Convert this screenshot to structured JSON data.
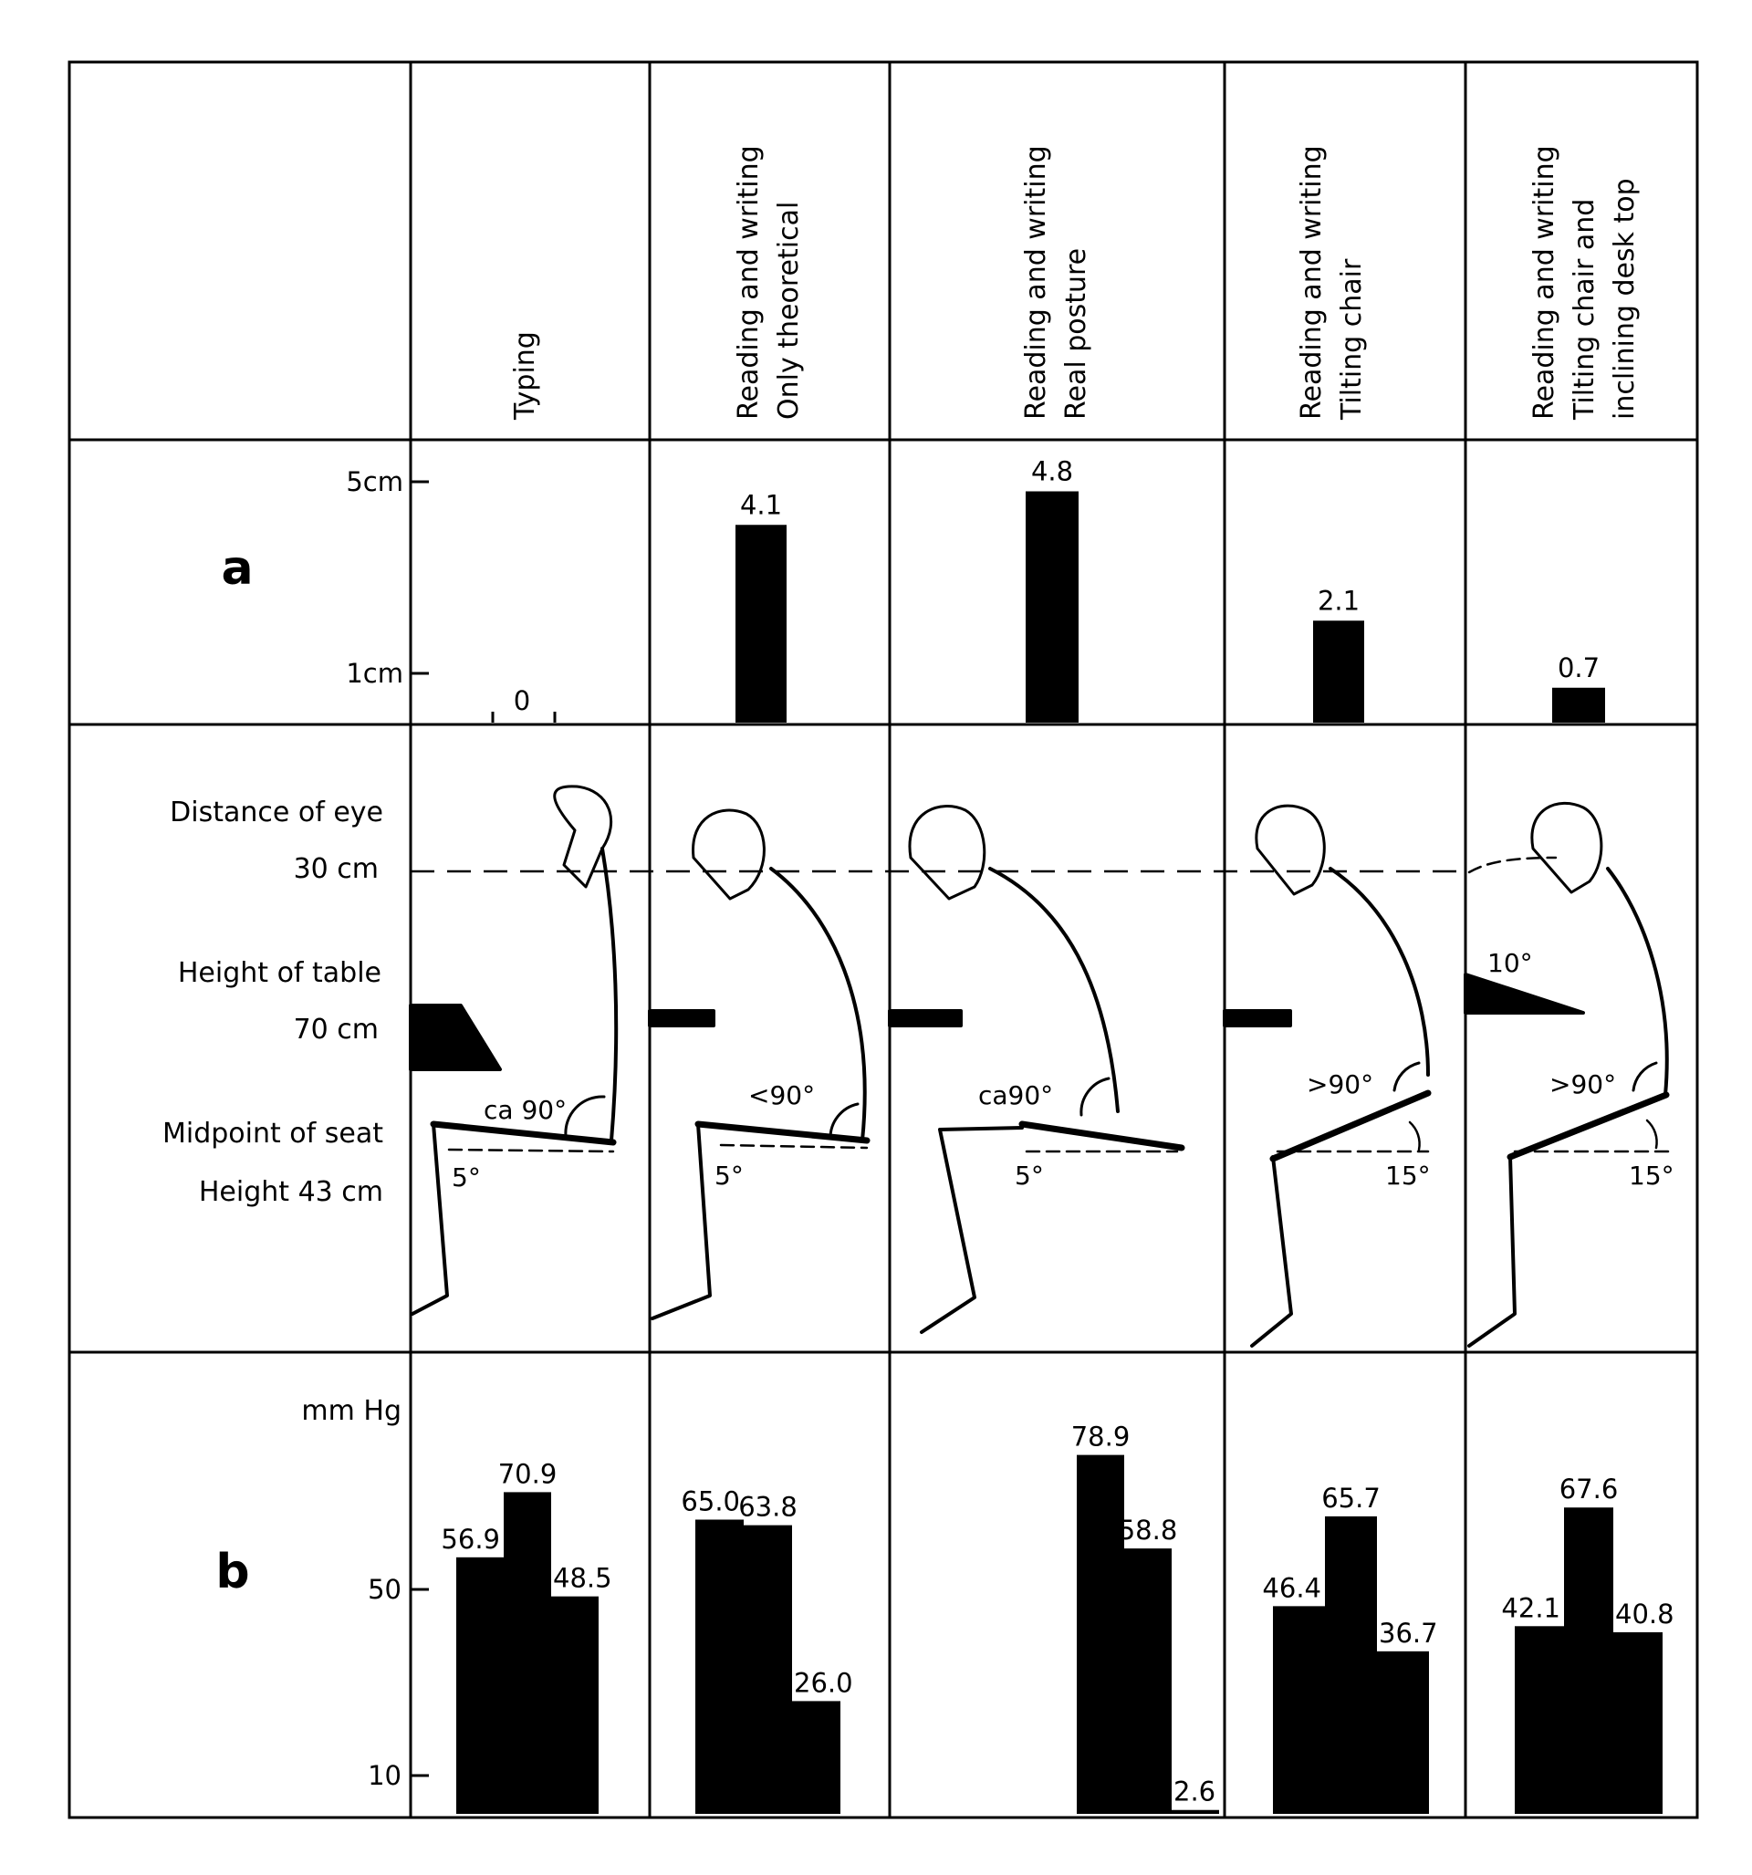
{
  "columns": [
    {
      "lines": [
        "Typing"
      ]
    },
    {
      "lines": [
        "Reading and writing",
        "Only theoretical"
      ]
    },
    {
      "lines": [
        "Reading and writing",
        "Real posture"
      ]
    },
    {
      "lines": [
        "Reading and writing",
        "Tilting chair"
      ]
    },
    {
      "lines": [
        "Reading and writing",
        "Tilting chair and",
        "inclining desk top"
      ]
    }
  ],
  "row_a": {
    "label": "a",
    "ticks": [
      {
        "label": "5cm",
        "value": 5
      },
      {
        "label": "1cm",
        "value": 1
      }
    ]
  },
  "row_posture": {
    "labels": [
      "Distance of eye",
      "30 cm",
      "Height of table",
      "70 cm",
      "Midpoint of seat",
      "Height 43 cm"
    ],
    "angles": [
      {
        "knee": "ca 90°",
        "seat": "5°"
      },
      {
        "knee": "<90°",
        "seat": "5°"
      },
      {
        "knee": "ca90°",
        "seat": "5°"
      },
      {
        "knee": ">90°",
        "seat": "15°"
      },
      {
        "knee": ">90°",
        "seat": "15°",
        "desk": "10°"
      }
    ]
  },
  "row_b": {
    "label": "b",
    "unit": "mm Hg",
    "ticks": [
      {
        "label": "50",
        "value": 50
      },
      {
        "label": "10",
        "value": 10
      }
    ]
  },
  "chart_data": [
    {
      "type": "bar",
      "panel": "a",
      "categories": [
        "Typing",
        "Reading and writing Only theoretical",
        "Reading and writing Real posture",
        "Reading and writing Tilting chair",
        "Reading and writing Tilting chair and inclining desk top"
      ],
      "values": [
        0,
        4.1,
        4.8,
        2.1,
        0.7
      ],
      "value_labels": [
        "0",
        "4.1",
        "4.8",
        "2.1",
        "0.7"
      ],
      "ylabel": "",
      "yticks": [
        "5cm",
        "1cm"
      ]
    },
    {
      "type": "bar",
      "panel": "b",
      "ylabel": "mm Hg",
      "yticks": [
        "50",
        "10"
      ],
      "groups": [
        {
          "category": "Typing",
          "values": [
            56.9,
            70.9,
            48.5
          ],
          "labels": [
            "56.9",
            "70.9",
            "48.5"
          ]
        },
        {
          "category": "Reading and writing Only theoretical",
          "values": [
            65.0,
            63.8,
            26.0
          ],
          "labels": [
            "65.0",
            "63.8",
            "26.0"
          ]
        },
        {
          "category": "Reading and writing Real posture",
          "values": [
            0,
            78.9,
            58.8,
            2.6
          ],
          "labels": [
            "",
            "78.9",
            "58.8",
            "2.6"
          ]
        },
        {
          "category": "Reading and writing Tilting chair",
          "values": [
            46.4,
            65.7,
            36.7
          ],
          "labels": [
            "46.4",
            "65.7",
            "36.7"
          ]
        },
        {
          "category": "Reading and writing Tilting chair and inclining desk top",
          "values": [
            42.1,
            67.6,
            40.8
          ],
          "labels": [
            "42.1",
            "67.6",
            "40.8"
          ]
        }
      ]
    }
  ]
}
